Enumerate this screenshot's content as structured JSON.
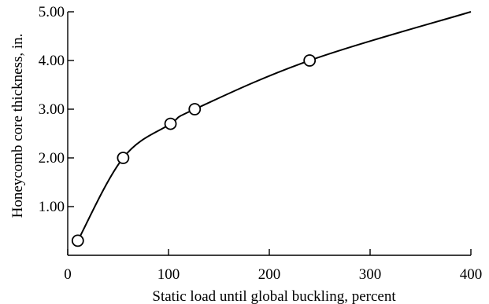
{
  "chart_data": {
    "type": "line",
    "title": "",
    "xlabel": "Static load until global buckling, percent",
    "ylabel": "Honeycomb core thickness, in.",
    "xlim": [
      0,
      400
    ],
    "ylim": [
      0,
      5.0
    ],
    "x_ticks": [
      0,
      100,
      200,
      300,
      400
    ],
    "x_tick_labels": [
      "0",
      "100",
      "200",
      "300",
      "400"
    ],
    "y_ticks": [
      1.0,
      2.0,
      3.0,
      4.0,
      5.0
    ],
    "y_tick_labels": [
      "1.00",
      "2.00",
      "3.00",
      "4.00",
      "5.00"
    ],
    "grid": false,
    "legend": "none",
    "series": [
      {
        "style": "curve with open circle markers",
        "points": [
          {
            "x": 10,
            "y": 0.3
          },
          {
            "x": 55,
            "y": 2.0
          },
          {
            "x": 102,
            "y": 2.7
          },
          {
            "x": 126,
            "y": 3.0
          },
          {
            "x": 240,
            "y": 4.0
          }
        ],
        "curve_end": {
          "x": 400,
          "y": 5.0
        }
      }
    ]
  }
}
